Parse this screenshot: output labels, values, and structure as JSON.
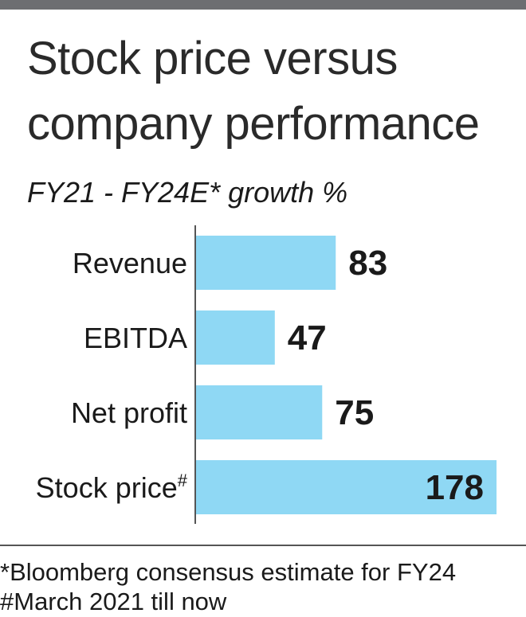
{
  "chart_data": {
    "type": "bar",
    "orientation": "horizontal",
    "title": "Stock price versus company performance",
    "title_lines": [
      "Stock price versus",
      "company performance"
    ],
    "subtitle": "FY21 - FY24E* growth %",
    "categories": [
      "Revenue",
      "EBITDA",
      "Net profit",
      "Stock price"
    ],
    "category_superscripts": [
      "",
      "",
      "",
      "#"
    ],
    "values": [
      83,
      47,
      75,
      178
    ],
    "value_labels": [
      "83",
      "47",
      "75",
      "178"
    ],
    "bar_color": "#8fd8f4",
    "xlim": [
      0,
      178
    ],
    "grid": false,
    "legend": "none"
  },
  "footnotes": [
    "*Bloomberg consensus estimate for FY24",
    "#March 2021 till now"
  ],
  "colors": {
    "bar": "#8fd8f4",
    "top_rule": "#6d6e71",
    "axis": "#555555",
    "text": "#1a1a1a"
  }
}
